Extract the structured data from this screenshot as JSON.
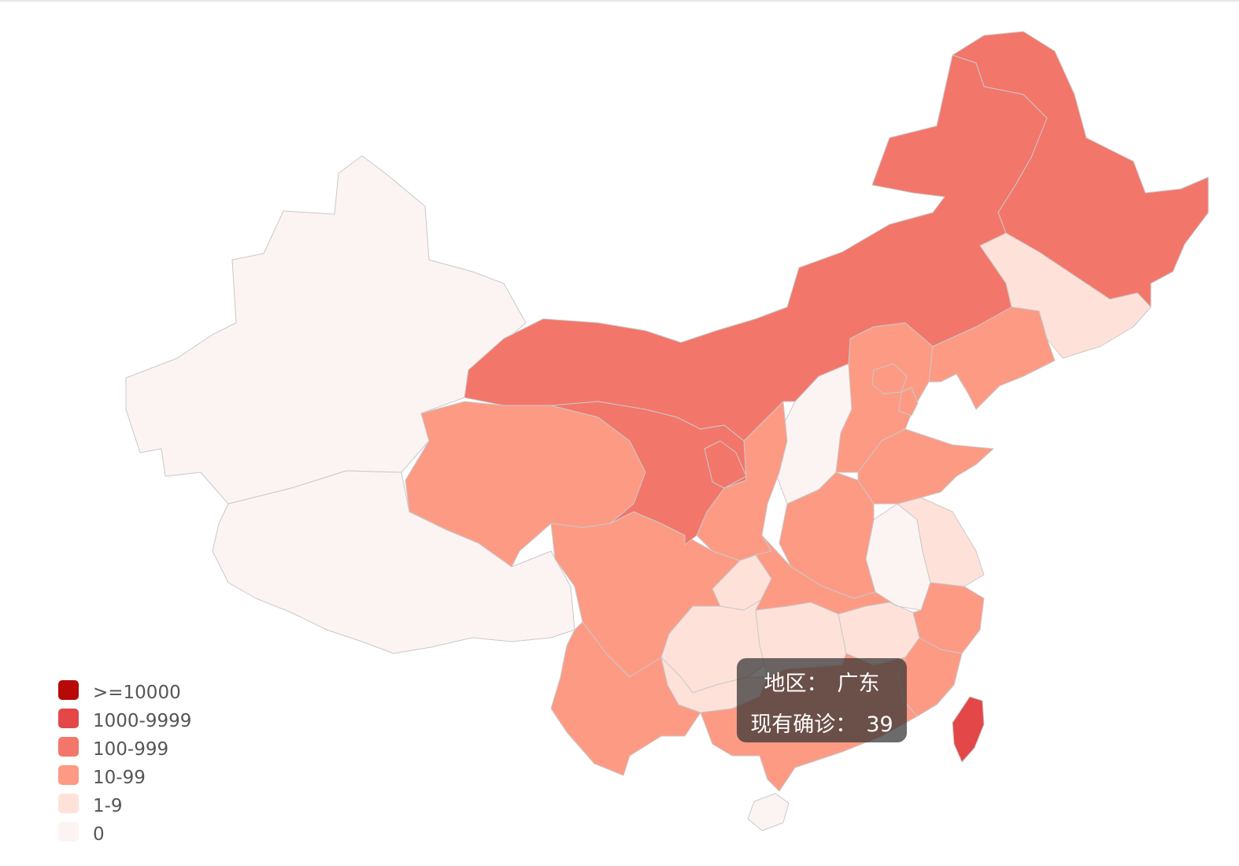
{
  "legend": {
    "pieces": [
      {
        "label": ">=10000",
        "color": "#b80909"
      },
      {
        "label": "1000-9999",
        "color": "#e34747"
      },
      {
        "label": "100-999",
        "color": "#f3766a"
      },
      {
        "label": "10-99",
        "color": "#fd9a84"
      },
      {
        "label": "1-9",
        "color": "#fee2da"
      },
      {
        "label": "0",
        "color": "#fcf4f2"
      }
    ]
  },
  "tooltip": {
    "region_label": "地区：",
    "region_value": "广东",
    "count_label": "现有确诊：",
    "count_value": "39"
  },
  "map_data": {
    "regions": [
      {
        "name": "新疆",
        "bucket": "0"
      },
      {
        "name": "西藏",
        "bucket": "0"
      },
      {
        "name": "山西",
        "bucket": "0"
      },
      {
        "name": "安徽",
        "bucket": "0"
      },
      {
        "name": "海南",
        "bucket": "0"
      },
      {
        "name": "吉林",
        "bucket": "1-9"
      },
      {
        "name": "江苏",
        "bucket": "1-9"
      },
      {
        "name": "重庆",
        "bucket": "1-9"
      },
      {
        "name": "贵州",
        "bucket": "1-9"
      },
      {
        "name": "湖南",
        "bucket": "1-9"
      },
      {
        "name": "江西",
        "bucket": "1-9"
      },
      {
        "name": "广西",
        "bucket": "1-9"
      },
      {
        "name": "青海",
        "bucket": "10-99"
      },
      {
        "name": "四川",
        "bucket": "10-99"
      },
      {
        "name": "云南",
        "bucket": "10-99"
      },
      {
        "name": "陕西",
        "bucket": "10-99"
      },
      {
        "name": "河南",
        "bucket": "10-99"
      },
      {
        "name": "湖北",
        "bucket": "10-99"
      },
      {
        "name": "河北",
        "bucket": "10-99"
      },
      {
        "name": "北京",
        "bucket": "10-99"
      },
      {
        "name": "天津",
        "bucket": "10-99"
      },
      {
        "name": "辽宁",
        "bucket": "10-99"
      },
      {
        "name": "山东",
        "bucket": "10-99"
      },
      {
        "name": "浙江",
        "bucket": "10-99"
      },
      {
        "name": "福建",
        "bucket": "10-99"
      },
      {
        "name": "广东",
        "bucket": "10-99",
        "value": 39
      },
      {
        "name": "黑龙江",
        "bucket": "100-999"
      },
      {
        "name": "内蒙古",
        "bucket": "100-999"
      },
      {
        "name": "甘肃",
        "bucket": "100-999"
      },
      {
        "name": "宁夏",
        "bucket": "100-999"
      },
      {
        "name": "台湾",
        "bucket": "1000-9999"
      }
    ]
  }
}
